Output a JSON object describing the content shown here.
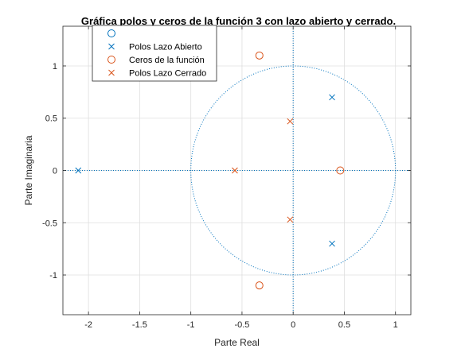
{
  "chart_data": {
    "type": "scatter",
    "title": "Gráfica polos y ceros de la función 3 con lazo abierto y cerrado.",
    "xlabel": "Parte Real",
    "ylabel": "Parte Imaginaria",
    "xlim": [
      -2.25,
      1.15
    ],
    "ylim": [
      -1.38,
      1.38
    ],
    "xticks": [
      -2,
      -1.5,
      -1,
      -0.5,
      0,
      0.5,
      1
    ],
    "xtick_labels": [
      "-2",
      "-1.5",
      "-1",
      "-0.5",
      "0",
      "0.5",
      "1"
    ],
    "yticks": [
      -1,
      -0.5,
      0,
      0.5,
      1
    ],
    "ytick_labels": [
      "-1",
      "-0.5",
      "0",
      "0.5",
      "1"
    ],
    "grid": true,
    "legend_position": "top-left",
    "unit_circle": {
      "radius": 1,
      "style": "dotted"
    },
    "series": [
      {
        "name": "",
        "marker": "o",
        "color": "#0072BD",
        "points": []
      },
      {
        "name": "Polos Lazo Abierto",
        "marker": "x",
        "color": "#0072BD",
        "points": [
          [
            -2.1,
            0
          ],
          [
            0.38,
            0.7
          ],
          [
            0.38,
            -0.7
          ]
        ]
      },
      {
        "name": "Ceros de la función",
        "marker": "o",
        "color": "#D95319",
        "points": [
          [
            -0.33,
            1.1
          ],
          [
            -0.33,
            -1.1
          ],
          [
            0.46,
            0
          ]
        ]
      },
      {
        "name": "Polos Lazo Cerrado",
        "marker": "x",
        "color": "#D95319",
        "points": [
          [
            -0.57,
            0
          ],
          [
            -0.03,
            0.47
          ],
          [
            -0.03,
            -0.47
          ]
        ]
      }
    ],
    "colors": {
      "axis": "#262626",
      "grid": "#dfdfdf",
      "reference": "#0072BD"
    }
  }
}
